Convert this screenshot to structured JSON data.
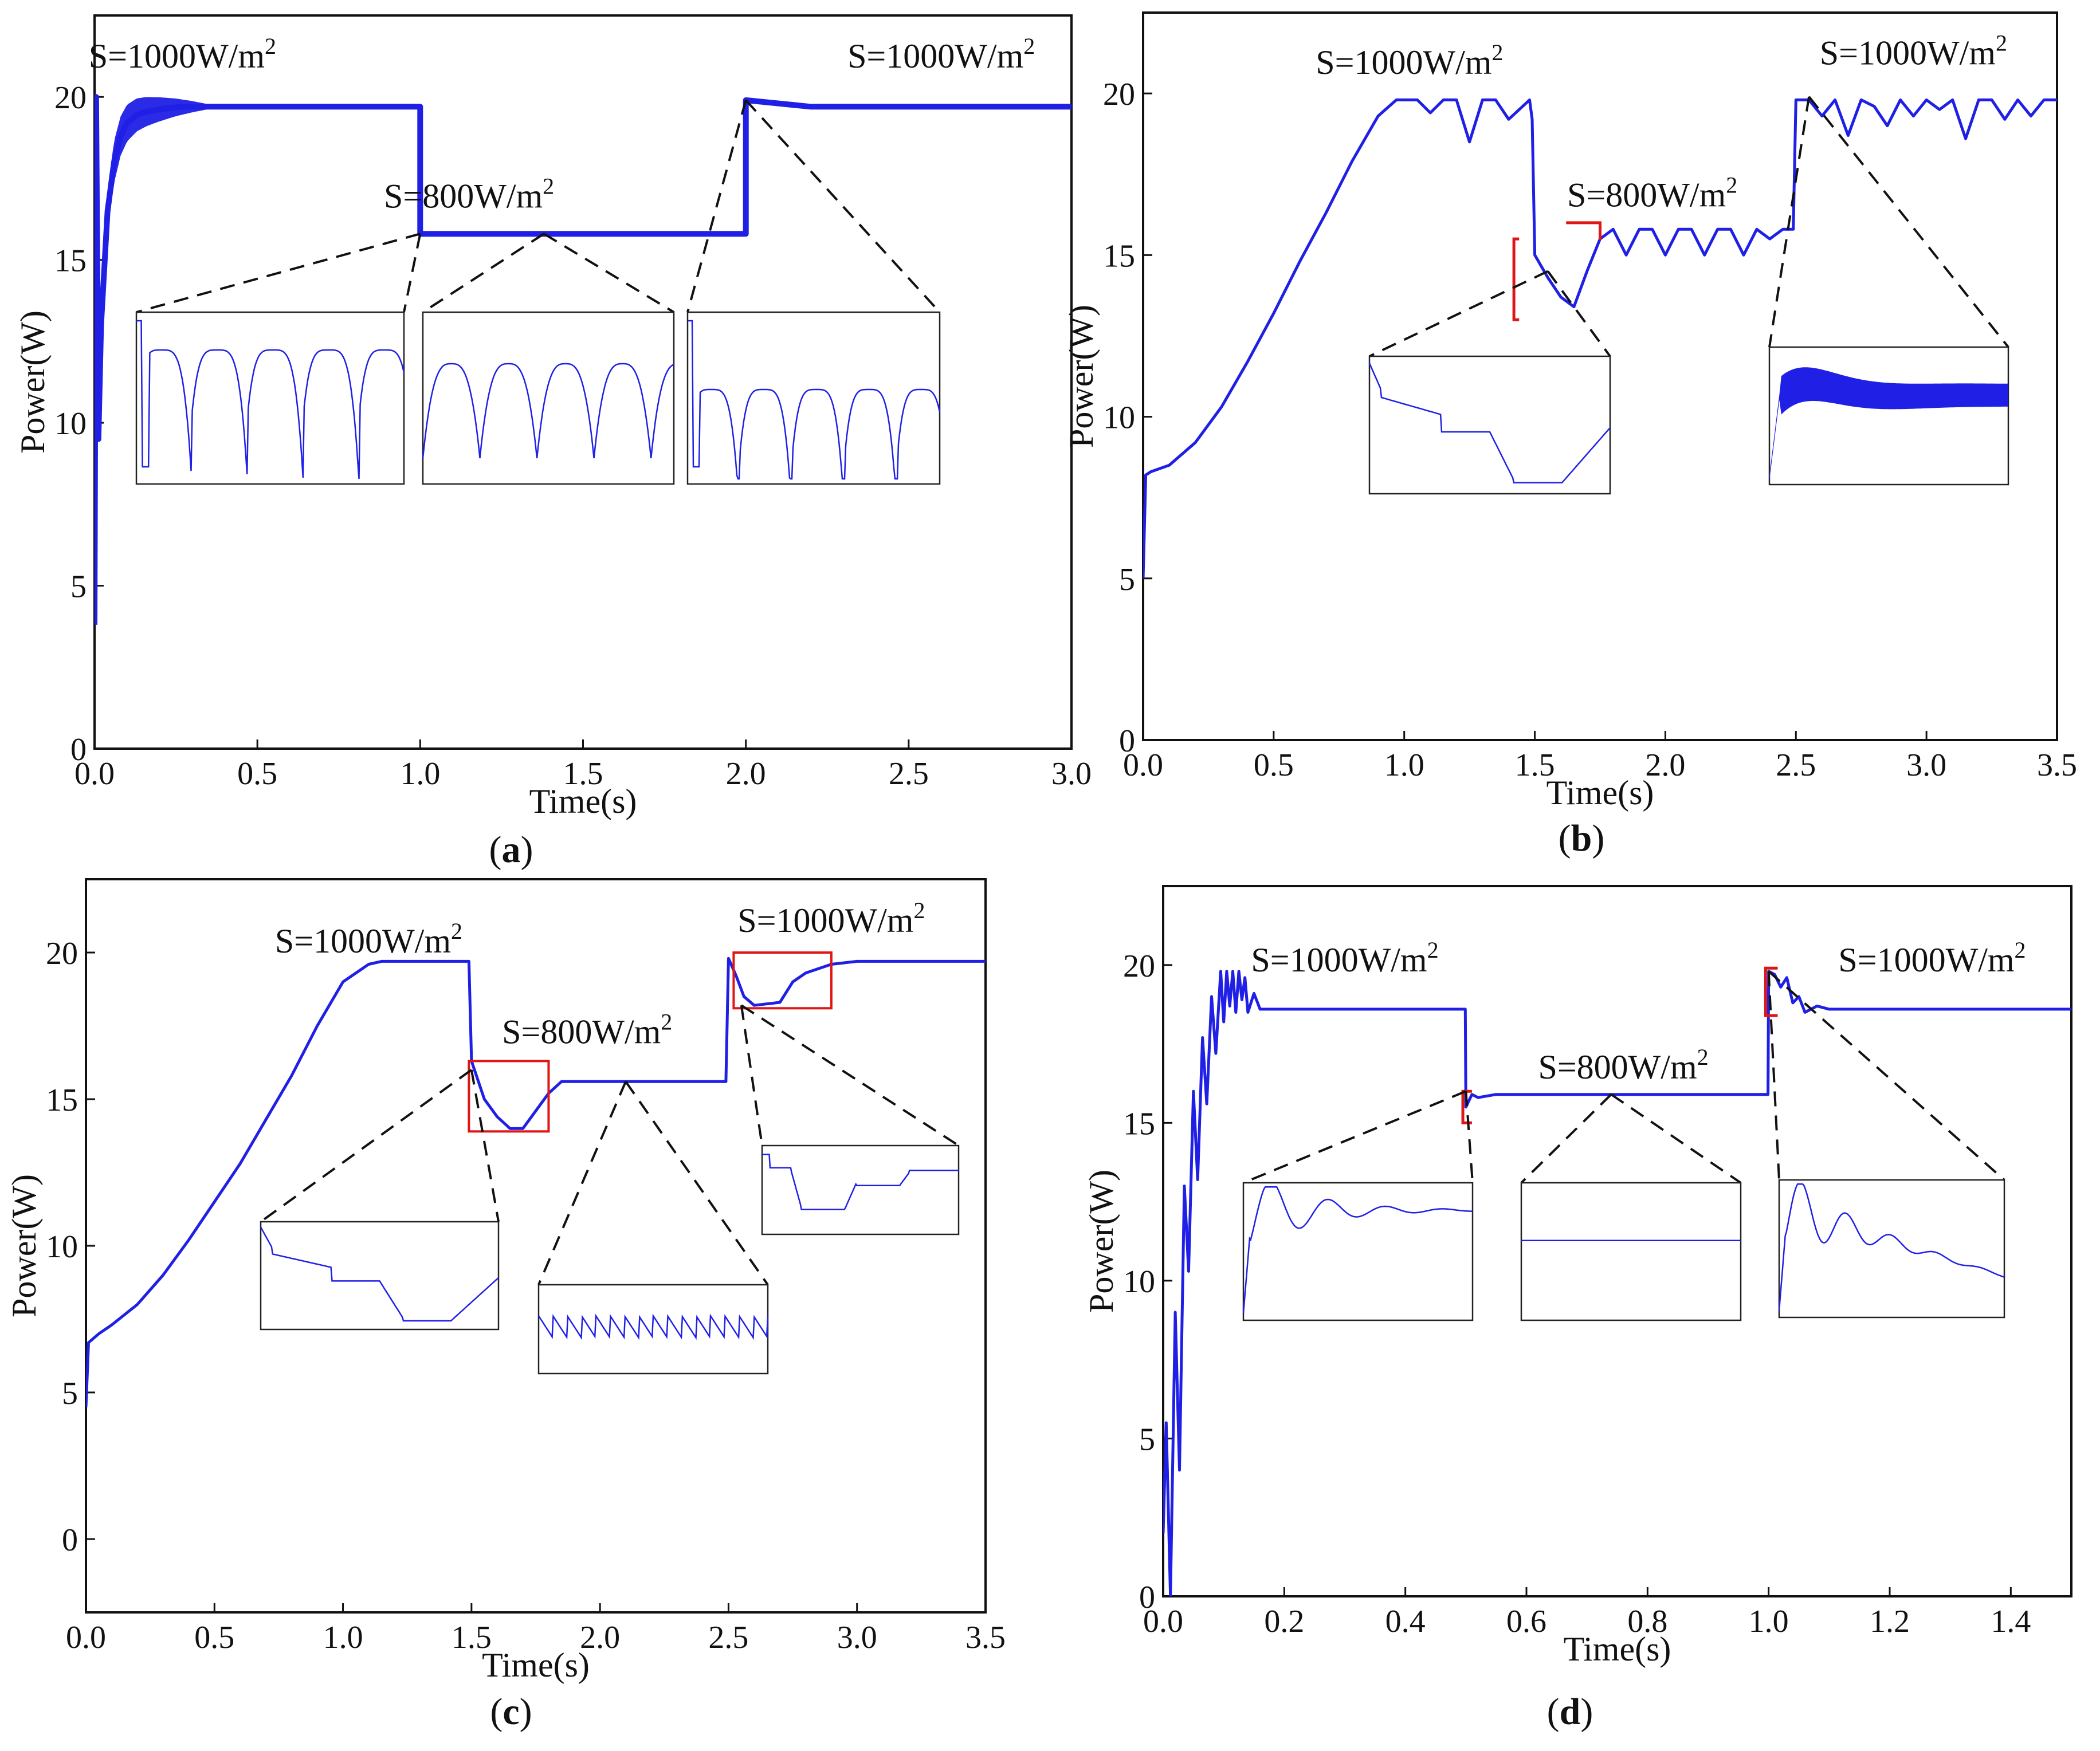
{
  "chart_data": [
    {
      "id": "a",
      "type": "line",
      "caption_label": "a",
      "xlabel": "Time(s)",
      "ylabel": "Power(W)",
      "xlim": [
        0,
        3.0
      ],
      "ylim": [
        0,
        22.5
      ],
      "xticks": [
        "0.0",
        "0.5",
        "1.0",
        "1.5",
        "2.0",
        "2.5",
        "3.0"
      ],
      "yticks": [
        "0",
        "5",
        "10",
        "15",
        "20"
      ],
      "series": [
        {
          "name": "P",
          "color": "#1f1fe6",
          "x": [
            0,
            0.005,
            0.012,
            0.02,
            0.04,
            0.06,
            0.08,
            0.1,
            0.13,
            0.16,
            0.2,
            0.25,
            0.3,
            0.35,
            0.5,
            0.7,
            0.9,
            0.995,
            1.0,
            1.0,
            1.3,
            1.6,
            1.995,
            2.0,
            2.0,
            2.2,
            2.5,
            2.8,
            3.0
          ],
          "y": [
            3.8,
            20.0,
            9.5,
            13.0,
            16.5,
            18.0,
            18.8,
            19.2,
            19.45,
            19.55,
            19.62,
            19.68,
            19.7,
            19.7,
            19.7,
            19.7,
            19.7,
            19.7,
            19.7,
            15.8,
            15.8,
            15.8,
            15.8,
            15.8,
            19.9,
            19.7,
            19.7,
            19.7,
            19.7
          ],
          "band": [
            [
              0.005,
              0.35,
              1.5,
              0.15
            ]
          ]
        }
      ],
      "annotations": [
        {
          "text": "S=1000W/m",
          "sup": "2",
          "x": 0.27,
          "y": 20.9
        },
        {
          "text": "S=800W/m",
          "sup": "2",
          "x": 1.15,
          "y": 16.6
        },
        {
          "text": "S=1000W/m",
          "sup": "2",
          "x": 2.6,
          "y": 20.9
        }
      ]
    },
    {
      "id": "b",
      "type": "line",
      "caption_label": "b",
      "xlabel": "Time(s)",
      "ylabel": "Power(W)",
      "xlim": [
        0,
        3.5
      ],
      "ylim": [
        0,
        22.5
      ],
      "xticks": [
        "0.0",
        "0.5",
        "1.0",
        "1.5",
        "2.0",
        "2.5",
        "3.0",
        "3.5"
      ],
      "yticks": [
        "0",
        "5",
        "10",
        "15",
        "20"
      ],
      "series": [
        {
          "name": "P",
          "color": "#1f1fe6",
          "x": [
            0,
            0.01,
            0.03,
            0.1,
            0.2,
            0.3,
            0.4,
            0.5,
            0.6,
            0.7,
            0.8,
            0.9,
            0.97,
            1.05,
            1.1,
            1.15,
            1.2,
            1.25,
            1.3,
            1.35,
            1.4,
            1.48,
            1.49,
            1.5,
            1.55,
            1.6,
            1.65,
            1.7,
            1.75,
            1.8,
            1.85,
            1.9,
            1.95,
            2.0,
            2.05,
            2.1,
            2.15,
            2.2,
            2.25,
            2.3,
            2.35,
            2.4,
            2.45,
            2.49,
            2.5,
            2.55,
            2.6,
            2.65,
            2.7,
            2.75,
            2.8,
            2.85,
            2.9,
            2.95,
            3.0,
            3.05,
            3.1,
            3.15,
            3.2,
            3.25,
            3.3,
            3.35,
            3.4,
            3.45,
            3.5
          ],
          "y": [
            5.0,
            8.2,
            8.3,
            8.5,
            9.2,
            10.3,
            11.7,
            13.2,
            14.8,
            16.3,
            17.9,
            19.3,
            19.8,
            19.8,
            19.4,
            19.8,
            19.8,
            18.5,
            19.8,
            19.8,
            19.2,
            19.8,
            19.2,
            15.0,
            14.3,
            13.7,
            13.4,
            14.5,
            15.5,
            15.8,
            15.0,
            15.8,
            15.8,
            15.0,
            15.8,
            15.8,
            15.0,
            15.8,
            15.8,
            15.0,
            15.8,
            15.5,
            15.8,
            15.8,
            19.8,
            19.8,
            19.3,
            19.8,
            18.7,
            19.8,
            19.6,
            19.0,
            19.8,
            19.3,
            19.8,
            19.5,
            19.8,
            18.6,
            19.8,
            19.8,
            19.2,
            19.8,
            19.3,
            19.8,
            19.8
          ]
        }
      ],
      "annotations": [
        {
          "text": "S=1000W/m",
          "sup": "2",
          "x": 1.02,
          "y": 20.6
        },
        {
          "text": "S=800W/m",
          "sup": "2",
          "x": 1.95,
          "y": 16.5
        },
        {
          "text": "S=1000W/m",
          "sup": "2",
          "x": 2.95,
          "y": 20.9
        }
      ]
    },
    {
      "id": "c",
      "type": "line",
      "caption_label": "c",
      "xlabel": "Time(s)",
      "ylabel": "Power(W)",
      "xlim": [
        0,
        3.5
      ],
      "ylim": [
        -2.5,
        22.5
      ],
      "xticks": [
        "0.0",
        "0.5",
        "1.0",
        "1.5",
        "2.0",
        "2.5",
        "3.0",
        "3.5"
      ],
      "yticks": [
        "0",
        "5",
        "10",
        "15",
        "20"
      ],
      "series": [
        {
          "name": "P",
          "color": "#1f1fe6",
          "x": [
            0,
            0.01,
            0.05,
            0.1,
            0.2,
            0.3,
            0.4,
            0.5,
            0.6,
            0.7,
            0.8,
            0.9,
            1.0,
            1.1,
            1.15,
            1.2,
            1.3,
            1.49,
            1.5,
            1.55,
            1.6,
            1.65,
            1.7,
            1.75,
            1.8,
            1.85,
            2.0,
            2.2,
            2.49,
            2.5,
            2.53,
            2.56,
            2.6,
            2.7,
            2.75,
            2.8,
            2.9,
            3.0,
            3.5
          ],
          "y": [
            4.5,
            6.7,
            7.0,
            7.3,
            8.0,
            9.0,
            10.2,
            11.5,
            12.8,
            14.3,
            15.8,
            17.5,
            19.0,
            19.6,
            19.7,
            19.7,
            19.7,
            19.7,
            16.3,
            15.0,
            14.4,
            14.0,
            14.0,
            14.6,
            15.2,
            15.6,
            15.6,
            15.6,
            15.6,
            19.8,
            19.2,
            18.5,
            18.2,
            18.3,
            19.0,
            19.3,
            19.6,
            19.7,
            19.7
          ]
        }
      ],
      "annotations": [
        {
          "text": "S=1000W/m",
          "sup": "2",
          "x": 1.1,
          "y": 20.0
        },
        {
          "text": "S=800W/m",
          "sup": "2",
          "x": 1.95,
          "y": 16.9
        },
        {
          "text": "S=1000W/m",
          "sup": "2",
          "x": 2.9,
          "y": 20.7
        }
      ]
    },
    {
      "id": "d",
      "type": "line",
      "caption_label": "d",
      "xlabel": "Time(s)",
      "ylabel": "Power(W)",
      "xlim": [
        0,
        1.5
      ],
      "ylim": [
        0,
        22.5
      ],
      "xticks": [
        "0.0",
        "0.2",
        "0.4",
        "0.6",
        "0.8",
        "1.0",
        "1.2",
        "1.4"
      ],
      "yticks": [
        "0",
        "5",
        "10",
        "15",
        "20"
      ],
      "series": [
        {
          "name": "P",
          "color": "#1f1fe6",
          "x": [
            0,
            0.005,
            0.012,
            0.02,
            0.027,
            0.035,
            0.042,
            0.05,
            0.057,
            0.065,
            0.072,
            0.08,
            0.087,
            0.095,
            0.1,
            0.105,
            0.11,
            0.115,
            0.12,
            0.125,
            0.13,
            0.135,
            0.14,
            0.15,
            0.16,
            0.2,
            0.3,
            0.499,
            0.5,
            0.51,
            0.52,
            0.55,
            0.7,
            0.999,
            1.0,
            1.01,
            1.02,
            1.03,
            1.04,
            1.05,
            1.06,
            1.08,
            1.1,
            1.2,
            1.5
          ],
          "y": [
            2.0,
            5.5,
            0.0,
            9.0,
            4.0,
            13.0,
            10.3,
            16.0,
            13.2,
            17.7,
            15.6,
            19.0,
            17.2,
            19.8,
            18.2,
            19.8,
            18.7,
            19.8,
            18.5,
            19.8,
            18.9,
            19.6,
            18.5,
            19.1,
            18.6,
            18.6,
            18.6,
            18.6,
            15.5,
            15.9,
            15.8,
            15.9,
            15.9,
            15.9,
            19.8,
            19.7,
            19.3,
            19.6,
            18.8,
            19.0,
            18.5,
            18.7,
            18.6,
            18.6,
            18.6
          ]
        }
      ],
      "annotations": [
        {
          "text": "S=1000W/m",
          "sup": "2",
          "x": 0.3,
          "y": 19.8
        },
        {
          "text": "S=800W/m",
          "sup": "2",
          "x": 0.76,
          "y": 16.4
        },
        {
          "text": "S=1000W/m",
          "sup": "2",
          "x": 1.27,
          "y": 19.8
        }
      ]
    }
  ]
}
